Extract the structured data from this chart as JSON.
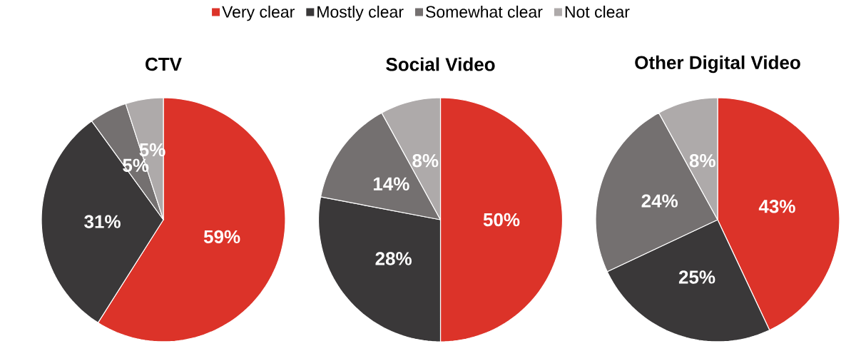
{
  "chart_data": [
    {
      "type": "pie",
      "title": "CTV",
      "categories": [
        "Very clear",
        "Mostly clear",
        "Somewhat clear",
        "Not clear"
      ],
      "values": [
        59,
        31,
        5,
        5
      ],
      "colors": [
        "#dc3329",
        "#3a3839",
        "#747070",
        "#aeaaaa"
      ],
      "value_labels": [
        "59%",
        "31%",
        "5%",
        "5%"
      ],
      "legend": "top"
    },
    {
      "type": "pie",
      "title": "Social Video",
      "categories": [
        null,
        null,
        null,
        null
      ],
      "values": [
        50,
        28,
        14,
        8
      ],
      "colors": [
        "#dc3329",
        "#3a3839",
        "#747070",
        "#aeaaaa"
      ],
      "value_labels": [
        "50%",
        "28%",
        "14%",
        "8%"
      ]
    },
    {
      "type": "pie",
      "title": "Other Digital Video",
      "categories": [
        null,
        null,
        null,
        null
      ],
      "values": [
        43,
        25,
        24,
        8
      ],
      "colors": [
        "#dc3329",
        "#3a3839",
        "#747070",
        "#aeaaaa"
      ],
      "value_labels": [
        "43%",
        "25%",
        "24%",
        "8%"
      ]
    }
  ]
}
